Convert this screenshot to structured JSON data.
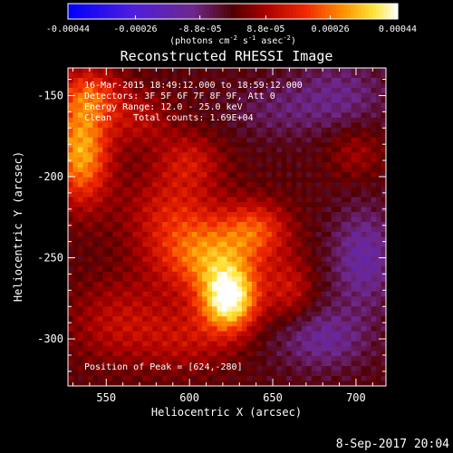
{
  "chart_data": {
    "type": "heatmap",
    "title": "Reconstructed RHESSI Image",
    "xlabel": "Heliocentric X (arcsec)",
    "ylabel": "Heliocentric Y (arcsec)",
    "xlim": [
      527,
      718
    ],
    "ylim": [
      -329,
      -133
    ],
    "x_ticks": [
      550,
      600,
      650,
      700
    ],
    "x_tick_labels": [
      "550",
      "600",
      "650",
      "700"
    ],
    "y_ticks": [
      -150,
      -200,
      -250,
      -300
    ],
    "y_tick_labels": [
      "-150",
      "-200",
      "-250",
      "-300"
    ],
    "colorbar": {
      "colormap": "hot-blue",
      "range": [
        -0.00044,
        0.00044
      ],
      "tick_values": [
        -0.00044,
        -0.00026,
        -8.8e-05,
        8.8e-05,
        0.00026,
        0.00044
      ],
      "tick_labels": [
        "-0.00044",
        "-0.00026",
        "-8.8e-05",
        "8.8e-05",
        "0.00026",
        "0.00044"
      ],
      "units_label": "(photons cm",
      "units_exp1": "-2",
      "units_mid": " s",
      "units_exp2": "-1",
      "units_mid2": " asec",
      "units_exp3": "-2",
      "units_end": ")"
    },
    "annotations": [
      "16-Mar-2015 18:49:12.000 to 18:59:12.000",
      "Detectors: 3F 5F 6F 7F 8F 9F, Att 0",
      "Energy Range: 12.0 - 25.0 keV",
      "Clean    Total counts: 1.69E+04"
    ],
    "peak_label": "Position of Peak = [624,-280]",
    "peak": {
      "x": 624,
      "y": -280,
      "value": 0.00044
    },
    "sources": [
      {
        "x": 624,
        "y": -276,
        "sx": 12,
        "sy": 14,
        "amp": 0.00042
      },
      {
        "x": 612,
        "y": -250,
        "sx": 22,
        "sy": 16,
        "amp": 0.00026
      },
      {
        "x": 640,
        "y": -232,
        "sx": 14,
        "sy": 12,
        "amp": 0.00018
      },
      {
        "x": 590,
        "y": -222,
        "sx": 20,
        "sy": 18,
        "amp": 0.00014
      },
      {
        "x": 535,
        "y": -185,
        "sx": 12,
        "sy": 22,
        "amp": 0.00032
      },
      {
        "x": 540,
        "y": -150,
        "sx": 14,
        "sy": 12,
        "amp": 0.00018
      },
      {
        "x": 570,
        "y": -165,
        "sx": 14,
        "sy": 12,
        "amp": 0.0001
      },
      {
        "x": 560,
        "y": -290,
        "sx": 22,
        "sy": 18,
        "amp": 0.00012
      },
      {
        "x": 600,
        "y": -300,
        "sx": 18,
        "sy": 14,
        "amp": 0.0001
      },
      {
        "x": 600,
        "y": -190,
        "sx": 14,
        "sy": 12,
        "amp": 0.00012
      },
      {
        "x": 700,
        "y": -185,
        "sx": 12,
        "sy": 12,
        "amp": 8e-05
      },
      {
        "x": 660,
        "y": -270,
        "sx": 10,
        "sy": 14,
        "amp": 0.00012
      },
      {
        "x": 680,
        "y": -300,
        "sx": 20,
        "sy": 14,
        "amp": -0.00012
      },
      {
        "x": 705,
        "y": -250,
        "sx": 14,
        "sy": 22,
        "amp": -0.00014
      },
      {
        "x": 690,
        "y": -150,
        "sx": 22,
        "sy": 16,
        "amp": -0.0001
      },
      {
        "x": 650,
        "y": -160,
        "sx": 20,
        "sy": 12,
        "amp": -6e-05
      }
    ]
  },
  "date_stamp": "8-Sep-2017 20:04"
}
